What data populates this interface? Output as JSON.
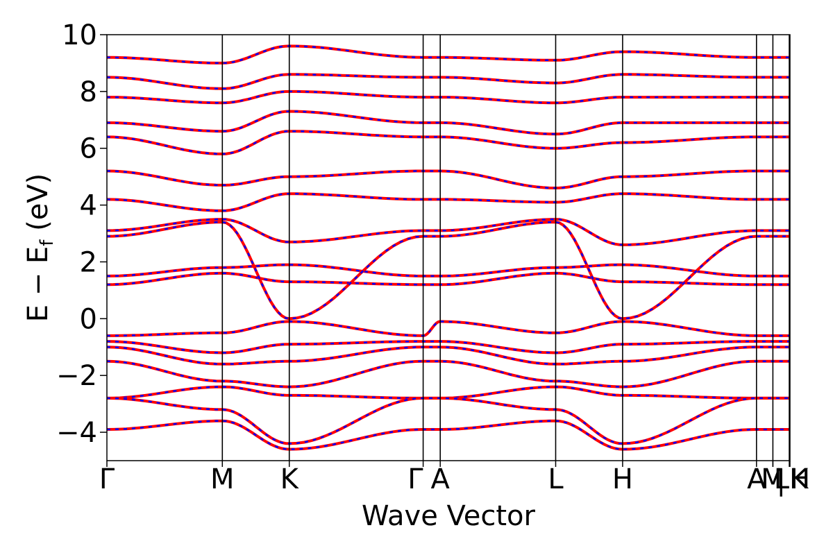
{
  "chart_data": {
    "type": "line",
    "title": "",
    "xlabel": "Wave Vector",
    "ylabel": "E − E_f (eV)",
    "ylabel_parts": {
      "main": "E − E",
      "sub": "f",
      "unit": " (eV)"
    },
    "ylim": [
      -5,
      10
    ],
    "yticks": [
      -4,
      -2,
      0,
      2,
      4,
      6,
      8,
      10
    ],
    "ytick_labels": [
      "−4",
      "−2",
      "0",
      "2",
      "4",
      "6",
      "8",
      "10"
    ],
    "xlim": [
      0,
      1
    ],
    "high_symmetry_points": [
      {
        "label": "Γ",
        "x": 0.0
      },
      {
        "label": "M",
        "x": 0.169
      },
      {
        "label": "K",
        "x": 0.267
      },
      {
        "label": "Γ",
        "x": 0.463
      },
      {
        "label": "A",
        "x": 0.488
      },
      {
        "label": "L",
        "x": 0.657
      },
      {
        "label": "H",
        "x": 0.755
      },
      {
        "label": "A",
        "x": 0.951
      },
      {
        "label": "M",
        "x": 0.975
      },
      {
        "label": "L",
        "x": 0.975
      },
      {
        "label": "H",
        "x": 0.999
      },
      {
        "label": "K",
        "x": 1.0
      }
    ],
    "x_tick_label_string": "Γ M K ΓA L H AM|L|HK",
    "series": [
      {
        "color": "#ff0000",
        "style": "solid"
      },
      {
        "color": "#0000ff",
        "style": "dashed"
      }
    ],
    "bands_sampled": [
      {
        "x": [
          0,
          0.169,
          0.267,
          0.463,
          0.488,
          0.657,
          0.755,
          0.951
        ],
        "y": [
          -0.6,
          -0.5,
          -0.1,
          -0.6,
          -0.1,
          -0.5,
          -0.1,
          -0.6
        ]
      },
      {
        "x": [
          0,
          0.169,
          0.267,
          0.463,
          0.488,
          0.657,
          0.755,
          0.951
        ],
        "y": [
          -0.8,
          -1.2,
          -0.9,
          -0.8,
          -0.8,
          -1.2,
          -0.9,
          -0.8
        ]
      },
      {
        "x": [
          0,
          0.169,
          0.267,
          0.463,
          0.488,
          0.657,
          0.755,
          0.951
        ],
        "y": [
          -1.0,
          -1.6,
          -1.5,
          -1.0,
          -1.0,
          -1.6,
          -1.5,
          -1.0
        ]
      },
      {
        "x": [
          0,
          0.169,
          0.267,
          0.463,
          0.488,
          0.657,
          0.755,
          0.951
        ],
        "y": [
          -1.5,
          -2.2,
          -2.4,
          -1.5,
          -1.5,
          -2.2,
          -2.4,
          -1.5
        ]
      },
      {
        "x": [
          0,
          0.169,
          0.267,
          0.463,
          0.488,
          0.657,
          0.755,
          0.951
        ],
        "y": [
          -2.8,
          -2.4,
          -2.7,
          -2.8,
          -2.8,
          -2.4,
          -2.7,
          -2.8
        ]
      },
      {
        "x": [
          0,
          0.169,
          0.267,
          0.463,
          0.488,
          0.657,
          0.755,
          0.951
        ],
        "y": [
          -2.8,
          -3.2,
          -4.4,
          -2.8,
          -2.8,
          -3.2,
          -4.4,
          -2.8
        ]
      },
      {
        "x": [
          0,
          0.169,
          0.267,
          0.463,
          0.488,
          0.657,
          0.755,
          0.951
        ],
        "y": [
          -3.9,
          -3.6,
          -4.6,
          -3.9,
          -3.9,
          -3.6,
          -4.6,
          -3.9
        ]
      },
      {
        "x": [
          0,
          0.169,
          0.267,
          0.463,
          0.488,
          0.657,
          0.755,
          0.951
        ],
        "y": [
          1.2,
          1.6,
          1.3,
          1.2,
          1.2,
          1.6,
          1.3,
          1.2
        ]
      },
      {
        "x": [
          0,
          0.169,
          0.267,
          0.463,
          0.488,
          0.657,
          0.755,
          0.951
        ],
        "y": [
          1.5,
          1.8,
          1.9,
          1.5,
          1.5,
          1.8,
          1.9,
          1.5
        ]
      },
      {
        "x": [
          0,
          0.169,
          0.267,
          0.463,
          0.488,
          0.657,
          0.755,
          0.951
        ],
        "y": [
          2.9,
          3.4,
          0.0,
          2.9,
          2.9,
          3.4,
          0.0,
          2.9
        ]
      },
      {
        "x": [
          0,
          0.169,
          0.267,
          0.463,
          0.488,
          0.657,
          0.755,
          0.951
        ],
        "y": [
          3.1,
          3.5,
          2.7,
          3.1,
          3.1,
          3.5,
          2.6,
          3.1
        ]
      },
      {
        "x": [
          0,
          0.169,
          0.267,
          0.463,
          0.488,
          0.657,
          0.755,
          0.951
        ],
        "y": [
          4.2,
          3.8,
          4.4,
          4.2,
          4.2,
          4.1,
          4.4,
          4.2
        ]
      },
      {
        "x": [
          0,
          0.169,
          0.267,
          0.463,
          0.488,
          0.657,
          0.755,
          0.951
        ],
        "y": [
          5.2,
          4.7,
          5.0,
          5.2,
          5.2,
          4.6,
          5.0,
          5.2
        ]
      },
      {
        "x": [
          0,
          0.169,
          0.267,
          0.463,
          0.488,
          0.657,
          0.755,
          0.951
        ],
        "y": [
          6.4,
          5.8,
          6.6,
          6.4,
          6.4,
          6.0,
          6.2,
          6.4
        ]
      },
      {
        "x": [
          0,
          0.169,
          0.267,
          0.463,
          0.488,
          0.657,
          0.755,
          0.951
        ],
        "y": [
          6.9,
          6.6,
          7.3,
          6.9,
          6.9,
          6.5,
          6.9,
          6.9
        ]
      },
      {
        "x": [
          0,
          0.169,
          0.267,
          0.463,
          0.488,
          0.657,
          0.755,
          0.951
        ],
        "y": [
          7.8,
          7.6,
          8.0,
          7.8,
          7.8,
          7.6,
          7.8,
          7.8
        ]
      },
      {
        "x": [
          0,
          0.169,
          0.267,
          0.463,
          0.488,
          0.657,
          0.755,
          0.951
        ],
        "y": [
          8.5,
          8.1,
          8.6,
          8.5,
          8.5,
          8.3,
          8.6,
          8.5
        ]
      },
      {
        "x": [
          0,
          0.169,
          0.267,
          0.463,
          0.488,
          0.657,
          0.755,
          0.951
        ],
        "y": [
          9.2,
          9.0,
          9.6,
          9.2,
          9.2,
          9.1,
          9.4,
          9.2
        ]
      }
    ],
    "grid": false,
    "legend": "none"
  }
}
